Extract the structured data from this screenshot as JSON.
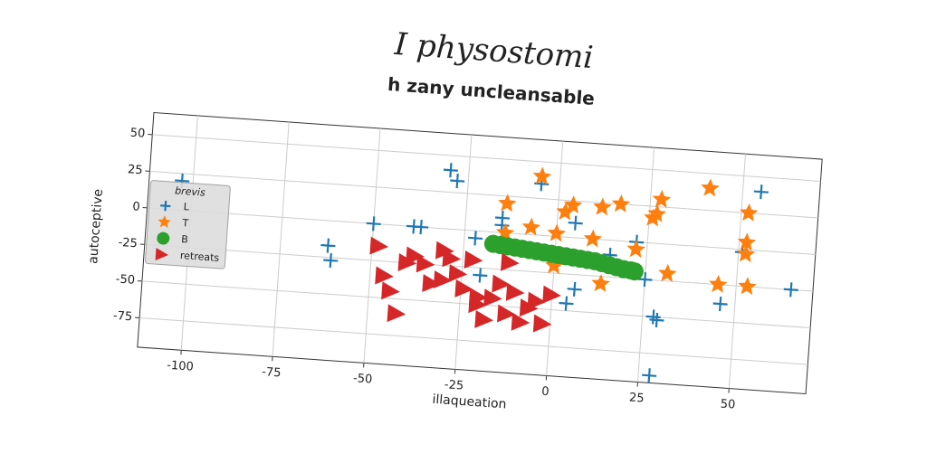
{
  "chart_data": {
    "type": "scatter",
    "title": "I physostomi",
    "subtitle": "h zany uncleansable",
    "x_label": "illaqueation",
    "y_label": "autoceptive",
    "legend_title": "brevis",
    "legend": "center left",
    "grid": true,
    "xlim": [
      -112,
      71
    ],
    "ylim": [
      -95,
      65
    ],
    "xticks": [
      -100,
      -75,
      -50,
      -25,
      0,
      25,
      50
    ],
    "yticks": [
      -75,
      -50,
      -25,
      0,
      25,
      50
    ],
    "series": [
      {
        "name": "L",
        "color": "#1f77b4",
        "marker": "plus",
        "x": [
          -103,
          -62,
          -61,
          -50,
          -39,
          -37,
          -30,
          -28,
          -22,
          -15,
          -15,
          -5,
          5,
          -20,
          15,
          22,
          25,
          6,
          4,
          28,
          29,
          46,
          51,
          55,
          65,
          28
        ],
        "values": [
          20,
          -17,
          -27,
          0,
          0,
          0,
          40,
          33,
          -5,
          10,
          5,
          35,
          10,
          -30,
          -10,
          0,
          -25,
          -35,
          -45,
          -50,
          -52,
          -38,
          -2,
          40,
          -25,
          -90
        ]
      },
      {
        "name": "T",
        "color": "#ff7f0e",
        "marker": "star",
        "x": [
          -5,
          -14,
          -7,
          2,
          0,
          4,
          -14,
          10,
          12,
          17,
          27,
          26,
          28,
          41,
          52,
          52,
          52,
          22,
          0,
          31,
          45,
          53,
          13
        ],
        "values": [
          40,
          20,
          5,
          17,
          2,
          22,
          0,
          0,
          22,
          25,
          20,
          17,
          30,
          40,
          25,
          5,
          -3,
          -5,
          -20,
          -20,
          -25,
          -25,
          -30
        ]
      },
      {
        "name": "B",
        "color": "#2ca02c",
        "marker": "circle",
        "x": [
          -17,
          -15,
          -13,
          -11,
          -9,
          -7,
          -5,
          -3,
          -1,
          1,
          3,
          5,
          7,
          9,
          11,
          13,
          15,
          17,
          19,
          21,
          22
        ],
        "values": [
          -8,
          -8.5,
          -9,
          -9.5,
          -10,
          -10.5,
          -11,
          -11.5,
          -12,
          -12.5,
          -13,
          -13.5,
          -14,
          -14.5,
          -15,
          -16,
          -17,
          -18,
          -19,
          -19.5,
          -20
        ]
      },
      {
        "name": "retreats",
        "color": "#d62728",
        "marker": "triangle",
        "x": [
          -48,
          -46,
          -44,
          -42,
          -38,
          -35,
          -33,
          -30,
          -28,
          -26,
          -24,
          -22,
          -20,
          -18,
          -16,
          -14,
          -12,
          -10,
          -8,
          -6,
          -4,
          -2,
          0,
          -30,
          -40,
          -12,
          -20
        ],
        "values": [
          -15,
          -35,
          -45,
          -60,
          -20,
          -25,
          -38,
          -15,
          -20,
          -30,
          -40,
          -20,
          -45,
          -60,
          -45,
          -35,
          -55,
          -40,
          -60,
          -50,
          -45,
          -60,
          -40,
          -35,
          -25,
          -20,
          -50
        ]
      }
    ]
  }
}
